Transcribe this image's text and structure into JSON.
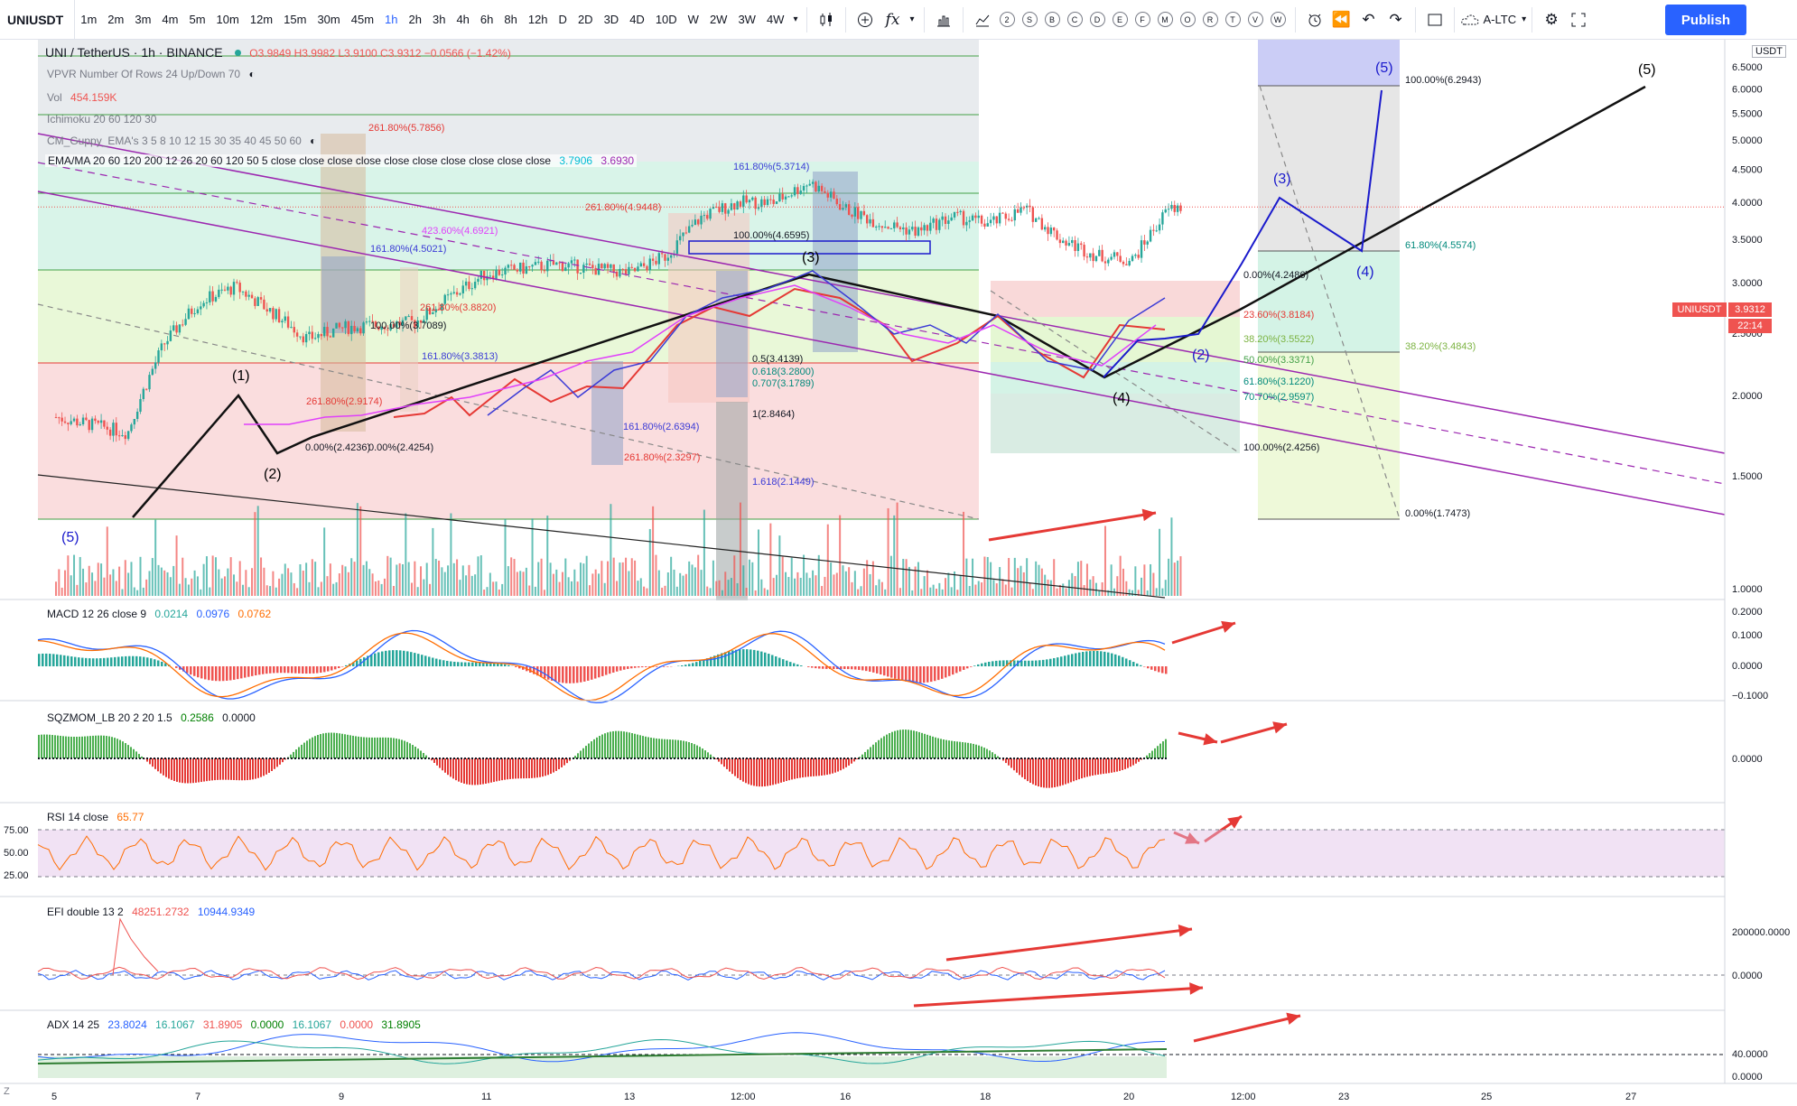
{
  "toolbar": {
    "symbol": "UNIUSDT",
    "timeframes": [
      "1m",
      "2m",
      "3m",
      "4m",
      "5m",
      "10m",
      "12m",
      "15m",
      "30m",
      "45m",
      "1h",
      "2h",
      "3h",
      "4h",
      "6h",
      "8h",
      "12h",
      "D",
      "2D",
      "3D",
      "4D",
      "10D",
      "W",
      "2W",
      "3W",
      "4W"
    ],
    "active_timeframe": "1h",
    "letters": [
      "2",
      "S",
      "B",
      "C",
      "D",
      "E",
      "F",
      "M",
      "O",
      "R",
      "T",
      "V",
      "W"
    ],
    "fx_label": "fx",
    "compare_label": "A-LTC",
    "publish_label": "Publish"
  },
  "legend": {
    "main_title": "UNI / TetherUS · 1h · BINANCE",
    "ohlc": "O3.9849 H3.9982 L3.9100 C3.9312 −0.0566 (−1.42%)",
    "vpvr": "VPVR Number Of Rows 24 Up/Down 70",
    "vol_label": "Vol",
    "vol_value": "454.159K",
    "ichimoku": "Ichimoku 20 60 120 30",
    "cm_guppy": "CM_Guppy_EMA's 3 5 8 10 12 15 30 35 40 45 50 60",
    "ema": "EMA/MA 20 60 120 200 12 26 20 60 120 50 5 close close close close close close close close close close",
    "ema_v1": "3.7906",
    "ema_v2": "3.6930",
    "macd": "MACD 12 26 close 9",
    "macd_v1": "0.0214",
    "macd_v2": "0.0976",
    "macd_v3": "0.0762",
    "sqz": "SQZMOM_LB 20 2 20 1.5",
    "sqz_v1": "0.2586",
    "sqz_v2": "0.0000",
    "rsi": "RSI 14 close",
    "rsi_v": "65.77",
    "efi": "EFI double 13 2",
    "efi_v1": "48251.2732",
    "efi_v2": "10944.9349",
    "adx": "ADX 14 25",
    "adx_v1": "23.8024",
    "adx_v2": "16.1067",
    "adx_v3": "31.8905",
    "adx_v4": "0.0000",
    "adx_v5": "16.1067",
    "adx_v6": "0.0000",
    "adx_v7": "31.8905"
  },
  "price_axis": {
    "unit": "USDT",
    "ticks": [
      "6.5000",
      "6.0000",
      "5.5000",
      "5.0000",
      "4.5000",
      "4.0000",
      "3.5000",
      "3.0000",
      "2.5000",
      "2.0000",
      "1.5000",
      "1.0000"
    ],
    "last_label": "UNIUSDT",
    "last_price": "3.9312",
    "countdown": "22:14"
  },
  "indicator_axes": {
    "macd": [
      "0.2000",
      "0.1000",
      "0.0000",
      "−0.1000"
    ],
    "sqz": [
      "0.0000"
    ],
    "rsi": [
      "75.00",
      "50.00",
      "25.00"
    ],
    "efi": [
      "200000.0000",
      "0.0000"
    ],
    "adx": [
      "40.0000",
      "0.0000"
    ]
  },
  "time_axis": [
    "5",
    "7",
    "9",
    "11",
    "13",
    "12:00",
    "16",
    "18",
    "20",
    "12:00",
    "23",
    "25",
    "27"
  ],
  "chart_data": {
    "type": "line",
    "title": "UNI / TetherUS · 1h · BINANCE",
    "y_unit": "USDT",
    "ylim": [
      1.0,
      6.6
    ],
    "y_scale": "log",
    "x_ticks": [
      "5",
      "7",
      "9",
      "11",
      "13",
      "12:00",
      "16",
      "18",
      "20",
      "12:00",
      "23",
      "25",
      "27"
    ],
    "price_path": [
      {
        "x": "5",
        "y": 1.85
      },
      {
        "x": "6",
        "y": 1.75
      },
      {
        "x": "6.5",
        "y": 2.4
      },
      {
        "x": "7",
        "y": 2.8
      },
      {
        "x": "7.5",
        "y": 2.95
      },
      {
        "x": "8",
        "y": 2.7
      },
      {
        "x": "8.5",
        "y": 2.45
      },
      {
        "x": "9",
        "y": 2.55
      },
      {
        "x": "10",
        "y": 2.6
      },
      {
        "x": "11",
        "y": 3.1
      },
      {
        "x": "12",
        "y": 3.2
      },
      {
        "x": "13",
        "y": 3.1
      },
      {
        "x": "13.5",
        "y": 3.3
      },
      {
        "x": "14",
        "y": 3.8
      },
      {
        "x": "14.5",
        "y": 4.0
      },
      {
        "x": "15",
        "y": 4.0
      },
      {
        "x": "15.5",
        "y": 4.3
      },
      {
        "x": "16",
        "y": 3.9
      },
      {
        "x": "16.5",
        "y": 3.7
      },
      {
        "x": "17",
        "y": 3.6
      },
      {
        "x": "17.5",
        "y": 3.8
      },
      {
        "x": "18",
        "y": 3.7
      },
      {
        "x": "18.5",
        "y": 3.9
      },
      {
        "x": "19",
        "y": 3.5
      },
      {
        "x": "19.5",
        "y": 3.3
      },
      {
        "x": "20",
        "y": 3.25
      },
      {
        "x": "20.5",
        "y": 3.9
      },
      {
        "x": "20.7",
        "y": 3.93
      }
    ],
    "projection_path": [
      {
        "label": "(2)",
        "y": 3.37
      },
      {
        "label": "(3)",
        "y": 5.1
      },
      {
        "label": "(4)",
        "y": 4.56
      },
      {
        "label": "(5)",
        "y": 6.29
      }
    ],
    "fib_levels_right": [
      {
        "label": "100.00%(6.2943)",
        "y": 6.2943
      },
      {
        "label": "61.80%(4.5574)",
        "y": 4.5574
      },
      {
        "label": "38.20%(3.4843)",
        "y": 3.4843
      },
      {
        "label": "0.00%(1.7473)",
        "y": 1.7473
      }
    ],
    "fib_levels_mid": [
      {
        "label": "0.00%(4.2486)",
        "y": 4.2486
      },
      {
        "label": "23.60%(3.8184)",
        "y": 3.8184
      },
      {
        "label": "38.20%(3.5522)",
        "y": 3.5522
      },
      {
        "label": "50.00%(3.3371)",
        "y": 3.3371
      },
      {
        "label": "61.80%(3.1220)",
        "y": 3.122
      },
      {
        "label": "70.70%(2.9597)",
        "y": 2.9597
      },
      {
        "label": "100.00%(2.4256)",
        "y": 2.4256
      }
    ],
    "fib_levels_left": [
      {
        "label": "261.80%(5.7856)",
        "y": 5.7856
      },
      {
        "label": "423.60%(4.6921)",
        "y": 4.6921
      },
      {
        "label": "161.80%(4.5021)",
        "y": 4.5021
      },
      {
        "label": "261.80%(3.8820)",
        "y": 3.882
      },
      {
        "label": "100.00%(3.7089)",
        "y": 3.7089
      },
      {
        "label": "161.80%(3.3813)",
        "y": 3.3813
      },
      {
        "label": "261.80%(2.9174)",
        "y": 2.9174
      },
      {
        "label": "261.80%(4.9448)",
        "y": 4.9448
      },
      {
        "label": "100.00%(4.6595)",
        "y": 4.6595
      },
      {
        "label": "161.80%(5.3714)",
        "y": 5.3714
      },
      {
        "label": "261.80%(2.3297)",
        "y": 2.3297
      },
      {
        "label": "1.618(2.1449)",
        "y": 2.1449
      },
      {
        "label": "1(2.8464)",
        "y": 2.8464
      },
      {
        "label": "0.5(3.4139)",
        "y": 3.4139
      },
      {
        "label": "0.618(3.2800)",
        "y": 3.28
      },
      {
        "label": "0.707(3.1789)",
        "y": 3.1789
      },
      {
        "label": "161.80%(2.6394)",
        "y": 2.6394
      },
      {
        "label": "0.00%(2.4236)",
        "y": 2.4236
      },
      {
        "label": "0.00%(2.4254)",
        "y": 2.4254
      }
    ],
    "wave_labels": [
      {
        "t": "(1)",
        "c": "#000000",
        "y": 3.4
      },
      {
        "t": "(2)",
        "c": "#000000",
        "y": 2.2
      },
      {
        "t": "(3)",
        "c": "#000000",
        "y": 4.3
      },
      {
        "t": "(4)",
        "c": "#000000",
        "y": 3.0
      },
      {
        "t": "(5)",
        "c": "#000000",
        "y": 6.3
      },
      {
        "t": "(3)",
        "c": "#1a1acc",
        "y": 5.1
      },
      {
        "t": "(4)",
        "c": "#1a1acc",
        "y": 4.45
      },
      {
        "t": "(5)",
        "c": "#1a1acc",
        "y": 6.4
      },
      {
        "t": "(2)",
        "c": "#1a1acc",
        "y": 3.37
      },
      {
        "t": "(5)",
        "c": "#1a1acc",
        "y": 1.7
      }
    ]
  }
}
